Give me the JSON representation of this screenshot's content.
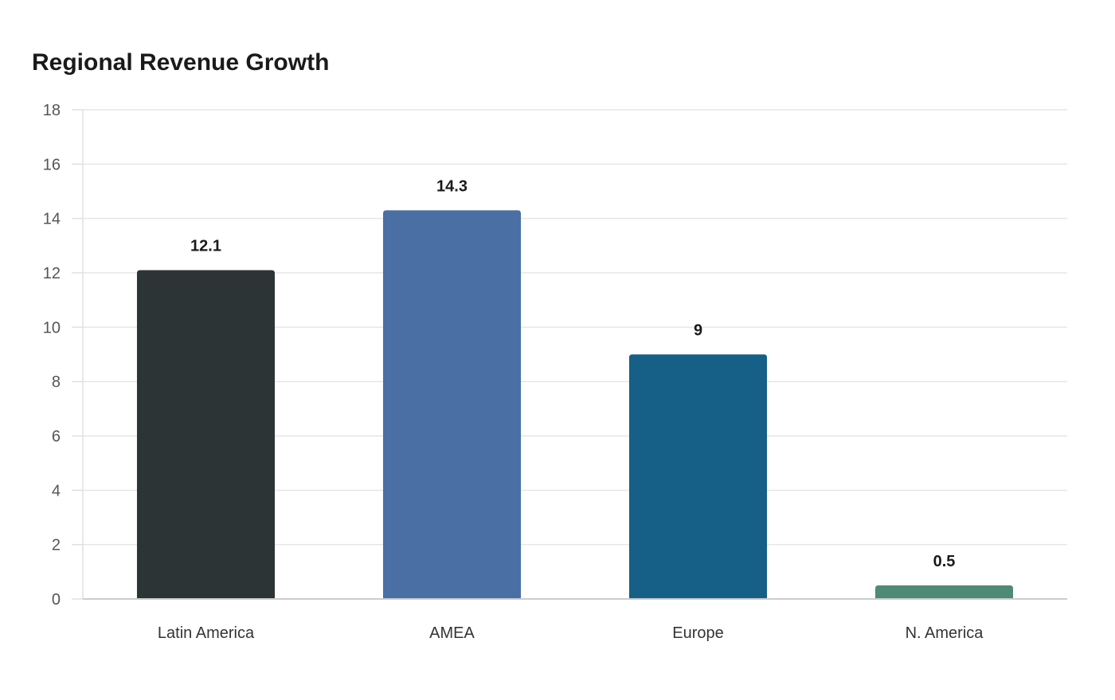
{
  "chart_data": {
    "type": "bar",
    "title": "Regional Revenue Growth",
    "xlabel": "",
    "ylabel": "",
    "categories": [
      "Latin America",
      "AMEA",
      "Europe",
      "N. America"
    ],
    "values": [
      12.1,
      14.3,
      9,
      0.5
    ],
    "value_labels": [
      "12.1",
      "14.3",
      "9",
      "0.5"
    ],
    "colors": [
      "#2d3436",
      "#4a6fa5",
      "#166088",
      "#4f8a77"
    ],
    "ylim": [
      0,
      18
    ],
    "yticks": [
      0,
      2,
      4,
      6,
      8,
      10,
      12,
      14,
      16,
      18
    ],
    "grid": true,
    "legend": false
  }
}
